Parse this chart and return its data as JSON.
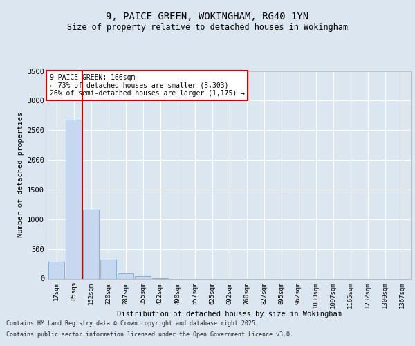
{
  "title1": "9, PAICE GREEN, WOKINGHAM, RG40 1YN",
  "title2": "Size of property relative to detached houses in Wokingham",
  "xlabel": "Distribution of detached houses by size in Wokingham",
  "ylabel": "Number of detached properties",
  "categories": [
    "17sqm",
    "85sqm",
    "152sqm",
    "220sqm",
    "287sqm",
    "355sqm",
    "422sqm",
    "490sqm",
    "557sqm",
    "625sqm",
    "692sqm",
    "760sqm",
    "827sqm",
    "895sqm",
    "962sqm",
    "1030sqm",
    "1097sqm",
    "1165sqm",
    "1232sqm",
    "1300sqm",
    "1367sqm"
  ],
  "values": [
    290,
    2680,
    1160,
    320,
    90,
    40,
    10,
    0,
    0,
    0,
    0,
    0,
    0,
    0,
    0,
    0,
    0,
    0,
    0,
    0,
    0
  ],
  "bar_color": "#c5d8ef",
  "bar_edge_color": "#7aaad0",
  "vline_x": 1.5,
  "vline_color": "#cc0000",
  "annotation_title": "9 PAICE GREEN: 166sqm",
  "annotation_line1": "← 73% of detached houses are smaller (3,303)",
  "annotation_line2": "26% of semi-detached houses are larger (1,175) →",
  "annotation_box_color": "#cc0000",
  "ylim": [
    0,
    3500
  ],
  "yticks": [
    0,
    500,
    1000,
    1500,
    2000,
    2500,
    3000,
    3500
  ],
  "bg_color": "#dce6f0",
  "plot_bg_color": "#dce6f0",
  "footer1": "Contains HM Land Registry data © Crown copyright and database right 2025.",
  "footer2": "Contains public sector information licensed under the Open Government Licence v3.0."
}
